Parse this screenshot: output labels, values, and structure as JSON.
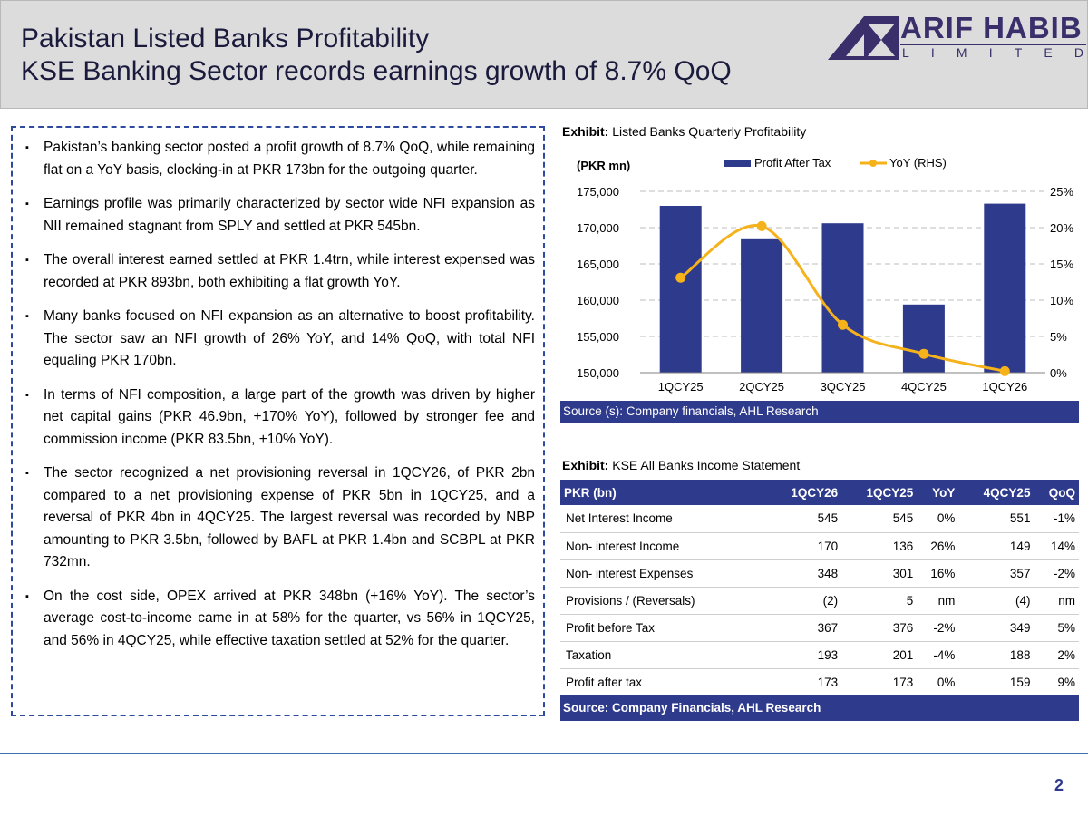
{
  "header": {
    "title_line1": "Pakistan Listed Banks Profitability",
    "title_line2": "KSE Banking Sector records earnings growth of 8.7% QoQ",
    "logo_main": "ARIF HABIB",
    "logo_sub": [
      "L",
      "I",
      "M",
      "I",
      "T",
      "E",
      "D"
    ],
    "brand_color": "#3a2f6b"
  },
  "summary": {
    "bullets": [
      "Pakistan’s banking sector posted a profit growth of 8.7% QoQ, while remaining flat on a YoY basis, clocking-in at PKR 173bn for the outgoing quarter.",
      "Earnings profile was primarily characterized by sector wide NFI expansion as NII remained stagnant from SPLY and settled at PKR 545bn.",
      "The overall interest earned settled at PKR 1.4trn, while interest expensed was recorded at PKR 893bn, both exhibiting a flat growth YoY.",
      "Many banks focused on NFI expansion as an alternative to boost profitability. The sector saw an NFI growth of 26% YoY, and 14% QoQ, with total NFI equaling PKR 170bn.",
      "In terms of NFI composition, a large part of the growth was driven by higher net capital gains (PKR 46.9bn, +170% YoY), followed by stronger fee and commission income (PKR 83.5bn, +10% YoY).",
      "The sector recognized a net provisioning reversal in 1QCY26, of PKR 2bn compared to a net provisioning expense of PKR 5bn in 1QCY25, and a reversal of PKR 4bn in 4QCY25. The largest reversal was recorded by NBP amounting to PKR 3.5bn, followed by BAFL at PKR 1.4bn and SCBPL at PKR 732mn.",
      "On the cost side, OPEX arrived at PKR 348bn (+16% YoY). The sector’s average cost-to-income came in at 58% for the quarter, vs 56% in 1QCY25, and 56% in 4QCY25, while effective taxation settled at 52% for the quarter."
    ]
  },
  "exhibit1": {
    "label": "Exhibit:",
    "title": "Listed Banks Quarterly Profitability",
    "source": "Source (s): Company financials, AHL Research"
  },
  "chart_data": {
    "type": "bar",
    "categories": [
      "1QCY25",
      "2QCY25",
      "3QCY25",
      "4QCY25",
      "1QCY26"
    ],
    "ylabel": "(PKR mn)",
    "ylim": [
      150000,
      175000
    ],
    "yticks": [
      "150,000",
      "155,000",
      "160,000",
      "165,000",
      "170,000",
      "175,000"
    ],
    "y2lim": [
      0,
      25
    ],
    "y2ticks": [
      "0%",
      "5%",
      "10%",
      "15%",
      "20%",
      "25%"
    ],
    "grid": true,
    "legend_position": "top",
    "series": [
      {
        "name": "Profit After Tax",
        "kind": "bar",
        "axis": "left",
        "color": "#2e3a8c",
        "values": [
          173000,
          168400,
          170600,
          159400,
          173300
        ]
      },
      {
        "name": "YoY (RHS)",
        "kind": "line",
        "axis": "right",
        "color": "#f5b21a",
        "values": [
          13.1,
          20.2,
          6.6,
          2.6,
          0.2
        ]
      }
    ]
  },
  "exhibit2": {
    "label": "Exhibit:",
    "title": "KSE All Banks Income Statement",
    "source": "Source: Company Financials, AHL Research",
    "columns": [
      "PKR (bn)",
      "1QCY26",
      "1QCY25",
      "YoY",
      "4QCY25",
      "QoQ"
    ],
    "rows": [
      [
        "Net Interest Income",
        "545",
        "545",
        "0%",
        "551",
        "-1%"
      ],
      [
        "Non- interest Income",
        "170",
        "136",
        "26%",
        "149",
        "14%"
      ],
      [
        "Non- interest Expenses",
        "348",
        "301",
        "16%",
        "357",
        "-2%"
      ],
      [
        "Provisions / (Reversals)",
        "(2)",
        "5",
        "nm",
        "(4)",
        "nm"
      ],
      [
        "Profit before Tax",
        "367",
        "376",
        "-2%",
        "349",
        "5%"
      ],
      [
        "Taxation",
        "193",
        "201",
        "-4%",
        "188",
        "2%"
      ],
      [
        "Profit after tax",
        "173",
        "173",
        "0%",
        "159",
        "9%"
      ]
    ]
  },
  "footer": {
    "page_number": "2"
  }
}
